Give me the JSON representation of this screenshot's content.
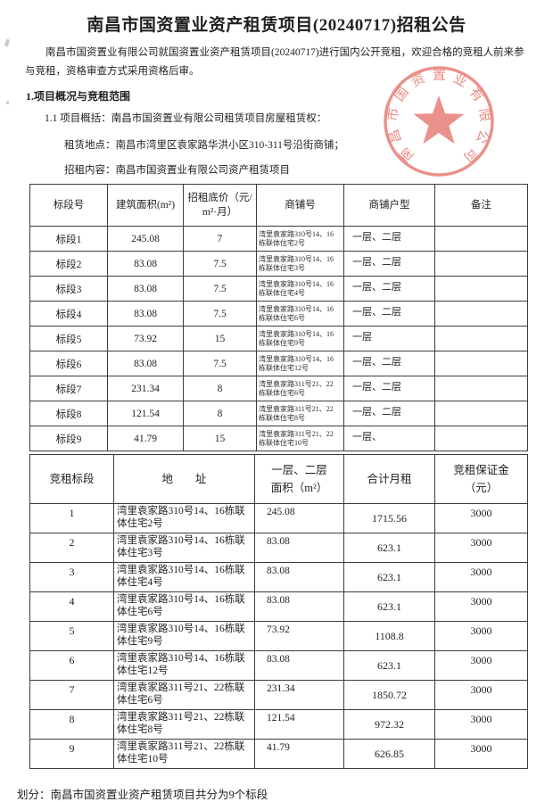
{
  "page": {
    "title": "南昌市国资置业资产租赁项目(20240717)招租公告",
    "intro": "南昌市国资置业有限公司就国资置业资产租赁项目(20240717)进行国内公开竞租，欢迎合格的竞租人前来参与竞租，资格审查方式采用资格后审。",
    "section1_heading": "1.项目概况与竞租范围",
    "item_1_1": "1.1 项目概括：南昌市国资置业有限公司租赁项目房屋租赁权：",
    "lease_location": "租赁地点：南昌市湾里区袁家路华洪小区310-311号沿街商铺；",
    "lease_content": "招租内容：南昌市国资置业有限公司资产租赁项目",
    "division_note": "划分：南昌市国资置业资产租赁项目共分为9个标段"
  },
  "seal": {
    "company": "南昌市国资置业有限公司",
    "color": "#e05a52"
  },
  "table1": {
    "headers": [
      "标段号",
      "建筑面积(m²)",
      "招租底价（元/\nm²·月）",
      "商铺号",
      "商铺户型",
      "备注"
    ],
    "rows": [
      [
        "标段1",
        "245.08",
        "7",
        "湾里袁家路310号14、16\n栋联体住宅2号",
        "一层、二层",
        ""
      ],
      [
        "标段2",
        "83.08",
        "7.5",
        "湾里袁家路310号14、16\n栋联体住宅3号",
        "一层、二层",
        ""
      ],
      [
        "标段3",
        "83.08",
        "7.5",
        "湾里袁家路310号14、16\n栋联体住宅4号",
        "一层、二层",
        ""
      ],
      [
        "标段4",
        "83.08",
        "7.5",
        "湾里袁家路310号14、16\n栋联体住宅6号",
        "一层、二层",
        ""
      ],
      [
        "标段5",
        "73.92",
        "15",
        "湾里袁家路310号14、16\n栋联体住宅9号",
        "一层",
        ""
      ],
      [
        "标段6",
        "83.08",
        "7.5",
        "湾里袁家路310号14、16\n栋联体住宅12号",
        "一层、二层",
        ""
      ],
      [
        "标段7",
        "231.34",
        "8",
        "湾里袁家路311号21、22\n栋联体住宅6号",
        "一层、二层",
        ""
      ],
      [
        "标段8",
        "121.54",
        "8",
        "湾里袁家路311号21、22\n栋联体住宅8号",
        "一层、二层",
        ""
      ],
      [
        "标段9",
        "41.79",
        "15",
        "湾里袁家路311号21、22\n栋联体住宅10号",
        "一层、",
        ""
      ]
    ]
  },
  "table2": {
    "headers": [
      "竞租标段",
      "地　　址",
      "一层、二层\n面积（m²）",
      "合计月租",
      "竞租保证金\n（元）"
    ],
    "rows": [
      [
        "1",
        "湾里袁家路310号14、16栋联\n体住宅2号",
        "245.08",
        "1715.56",
        "3000"
      ],
      [
        "2",
        "湾里袁家路310号14、16栋联\n体住宅3号",
        "83.08",
        "623.1",
        "3000"
      ],
      [
        "3",
        "湾里袁家路310号14、16栋联\n体住宅4号",
        "83.08",
        "623.1",
        "3000"
      ],
      [
        "4",
        "湾里袁家路310号14、16栋联\n体住宅6号",
        "83.08",
        "623.1",
        "3000"
      ],
      [
        "5",
        "湾里袁家路310号14、16栋联\n体住宅9号",
        "73.92",
        "1108.8",
        "3000"
      ],
      [
        "6",
        "湾里袁家路310号14、16栋联\n体住宅12号",
        "83.08",
        "623.1",
        "3000"
      ],
      [
        "7",
        "湾里袁家路311号21、22栋联\n体住宅6号",
        "231.34",
        "1850.72",
        "3000"
      ],
      [
        "8",
        "湾里袁家路311号21、22栋联\n体住宅8号",
        "121.54",
        "972.32",
        "3000"
      ],
      [
        "9",
        "湾里袁家路311号21、22栋联\n体住宅10号",
        "41.79",
        "626.85",
        "3000"
      ]
    ]
  }
}
